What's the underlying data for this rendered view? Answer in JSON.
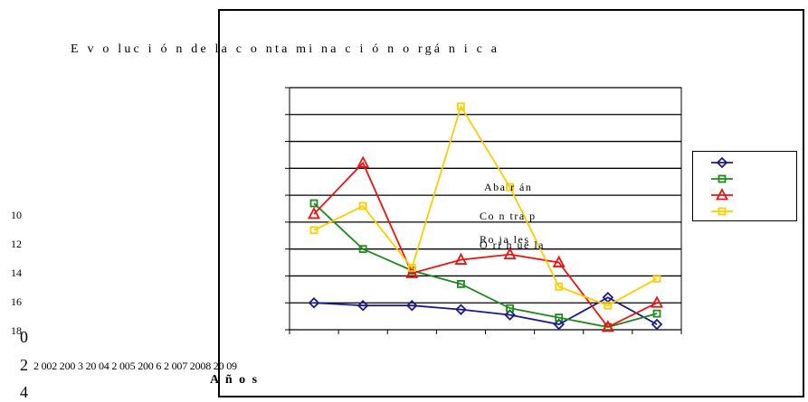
{
  "chart_data": {
    "type": "line",
    "title": "E v o luc i ó n de la c o nta mi na c i ó n o rgá n i c a",
    "xlabel": "A ñ o s",
    "x_tick_text": "2 002 200 3 20 04 2 005 200 6 2 007 2008 20 09",
    "x": [
      "2002",
      "2003",
      "2004",
      "2005",
      "2006",
      "2007",
      "2008",
      "2009"
    ],
    "ylim": [
      0,
      9
    ],
    "y_grid_count": 9,
    "series": [
      {
        "name": "Aba r án",
        "color": "#1a1a8c",
        "marker": "diamond",
        "values": [
          1.0,
          0.9,
          0.9,
          0.75,
          0.55,
          0.2,
          1.2,
          0.2
        ]
      },
      {
        "name": "Co n tra p",
        "color": "#1c8a1c",
        "marker": "square",
        "values": [
          4.7,
          3.0,
          2.2,
          1.7,
          0.8,
          0.45,
          0.1,
          0.6
        ]
      },
      {
        "name": "Ro ja les",
        "color": "#ee1111",
        "marker": "triangle",
        "values": [
          4.3,
          6.2,
          2.1,
          2.6,
          2.8,
          2.5,
          0.1,
          1.0
        ]
      },
      {
        "name": "O ri h ue la",
        "color": "#ffcc00",
        "marker": "square",
        "values": [
          3.7,
          4.6,
          2.3,
          8.3,
          5.3,
          1.6,
          0.9,
          1.9
        ]
      }
    ],
    "y_outside_labels": [
      "10",
      "12",
      "14",
      "16",
      "18"
    ],
    "extra_left_numbers": [
      "0",
      "2",
      "4"
    ],
    "grid": true,
    "legend_position": "right"
  }
}
